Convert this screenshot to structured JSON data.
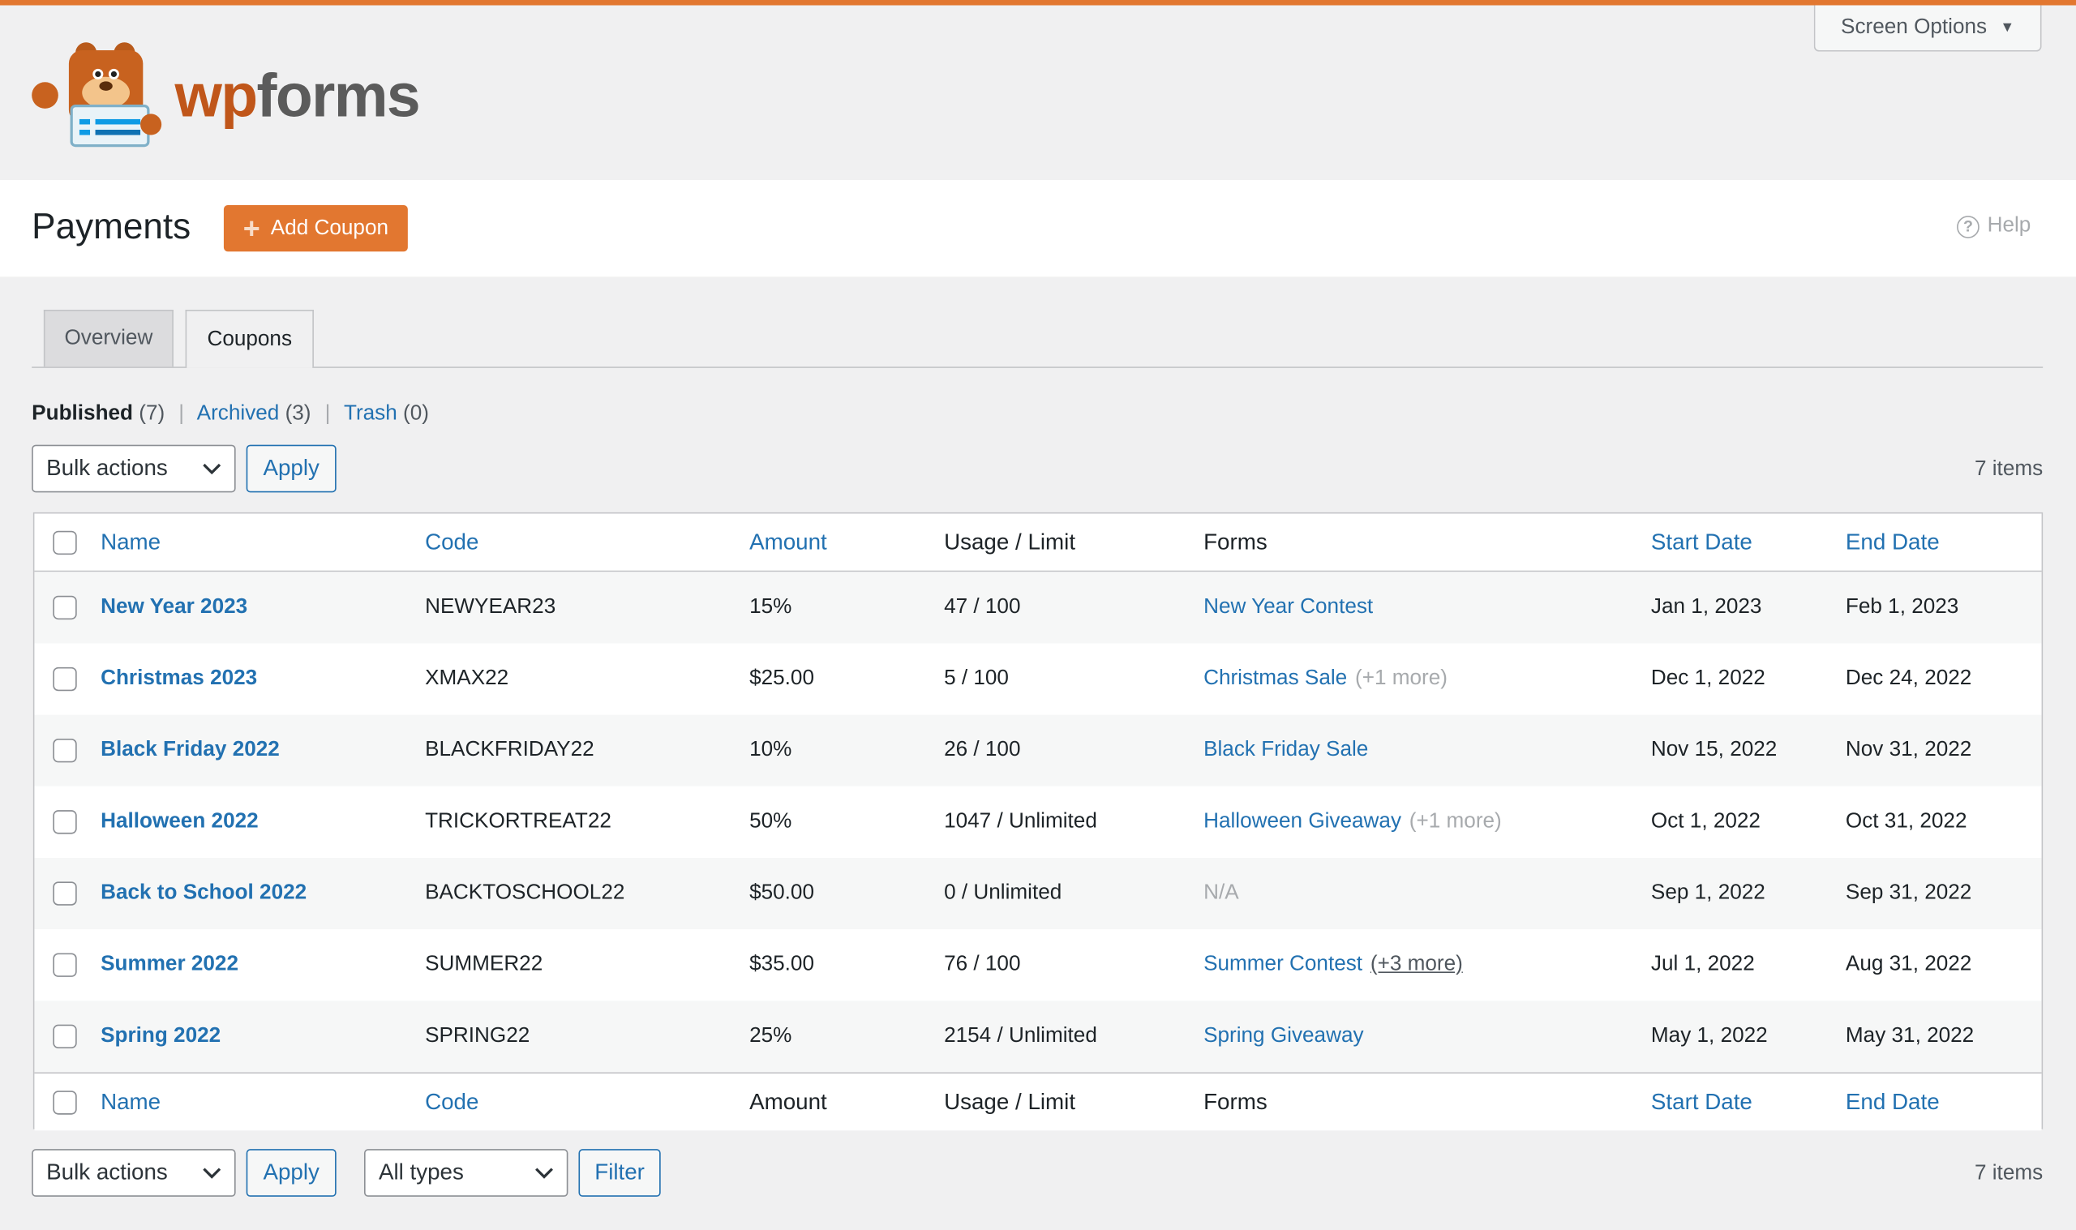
{
  "header": {
    "logo_text": "wpforms",
    "screen_options": "Screen Options"
  },
  "page": {
    "title": "Payments",
    "add_button": "Add Coupon",
    "help": "Help"
  },
  "tabs": [
    {
      "label": "Overview",
      "active": false
    },
    {
      "label": "Coupons",
      "active": true
    }
  ],
  "filters": {
    "published": "Published",
    "published_count": "(7)",
    "archived": "Archived",
    "archived_count": "(3)",
    "trash": "Trash",
    "trash_count": "(0)",
    "sep": "|"
  },
  "controls": {
    "bulk_actions": "Bulk actions",
    "apply": "Apply",
    "all_types": "All types",
    "filter": "Filter",
    "items_count": "7 items"
  },
  "columns": [
    "Name",
    "Code",
    "Amount",
    "Usage / Limit",
    "Forms",
    "Start Date",
    "End Date"
  ],
  "rows": [
    {
      "name": "New Year 2023",
      "code": "NEWYEAR23",
      "amount": "15%",
      "usage": "47 / 100",
      "form": "New Year Contest",
      "more": "",
      "start": "Jan 1, 2023",
      "end": "Feb 1, 2023"
    },
    {
      "name": "Christmas 2023",
      "code": "XMAX22",
      "amount": "$25.00",
      "usage": "5 / 100",
      "form": "Christmas Sale",
      "more": "(+1 more)",
      "start": "Dec 1, 2022",
      "end": "Dec 24, 2022"
    },
    {
      "name": "Black Friday 2022",
      "code": "BLACKFRIDAY22",
      "amount": "10%",
      "usage": "26 / 100",
      "form": "Black Friday Sale",
      "more": "",
      "start": "Nov 15, 2022",
      "end": "Nov 31, 2022"
    },
    {
      "name": "Halloween 2022",
      "code": "TRICKORTREAT22",
      "amount": "50%",
      "usage": "1047 / Unlimited",
      "form": "Halloween Giveaway",
      "more": "(+1 more)",
      "start": "Oct 1, 2022",
      "end": "Oct 31, 2022"
    },
    {
      "name": "Back to School 2022",
      "code": "BACKTOSCHOOL22",
      "amount": "$50.00",
      "usage": "0 / Unlimited",
      "form": "N/A",
      "more": "",
      "start": "Sep 1, 2022",
      "end": "Sep 31, 2022"
    },
    {
      "name": "Summer 2022",
      "code": "SUMMER22",
      "amount": "$35.00",
      "usage": "76 / 100",
      "form": "Summer Contest",
      "more": "(+3 more)",
      "start": "Jul 1, 2022",
      "end": "Aug 31, 2022"
    },
    {
      "name": "Spring 2022",
      "code": "SPRING22",
      "amount": "25%",
      "usage": "2154 / Unlimited",
      "form": "Spring Giveaway",
      "more": "",
      "start": "May 1, 2022",
      "end": "May 31, 2022"
    }
  ],
  "colors": {
    "accent": "#e27730",
    "link": "#2271b1",
    "stripe": "#f6f7f7"
  }
}
